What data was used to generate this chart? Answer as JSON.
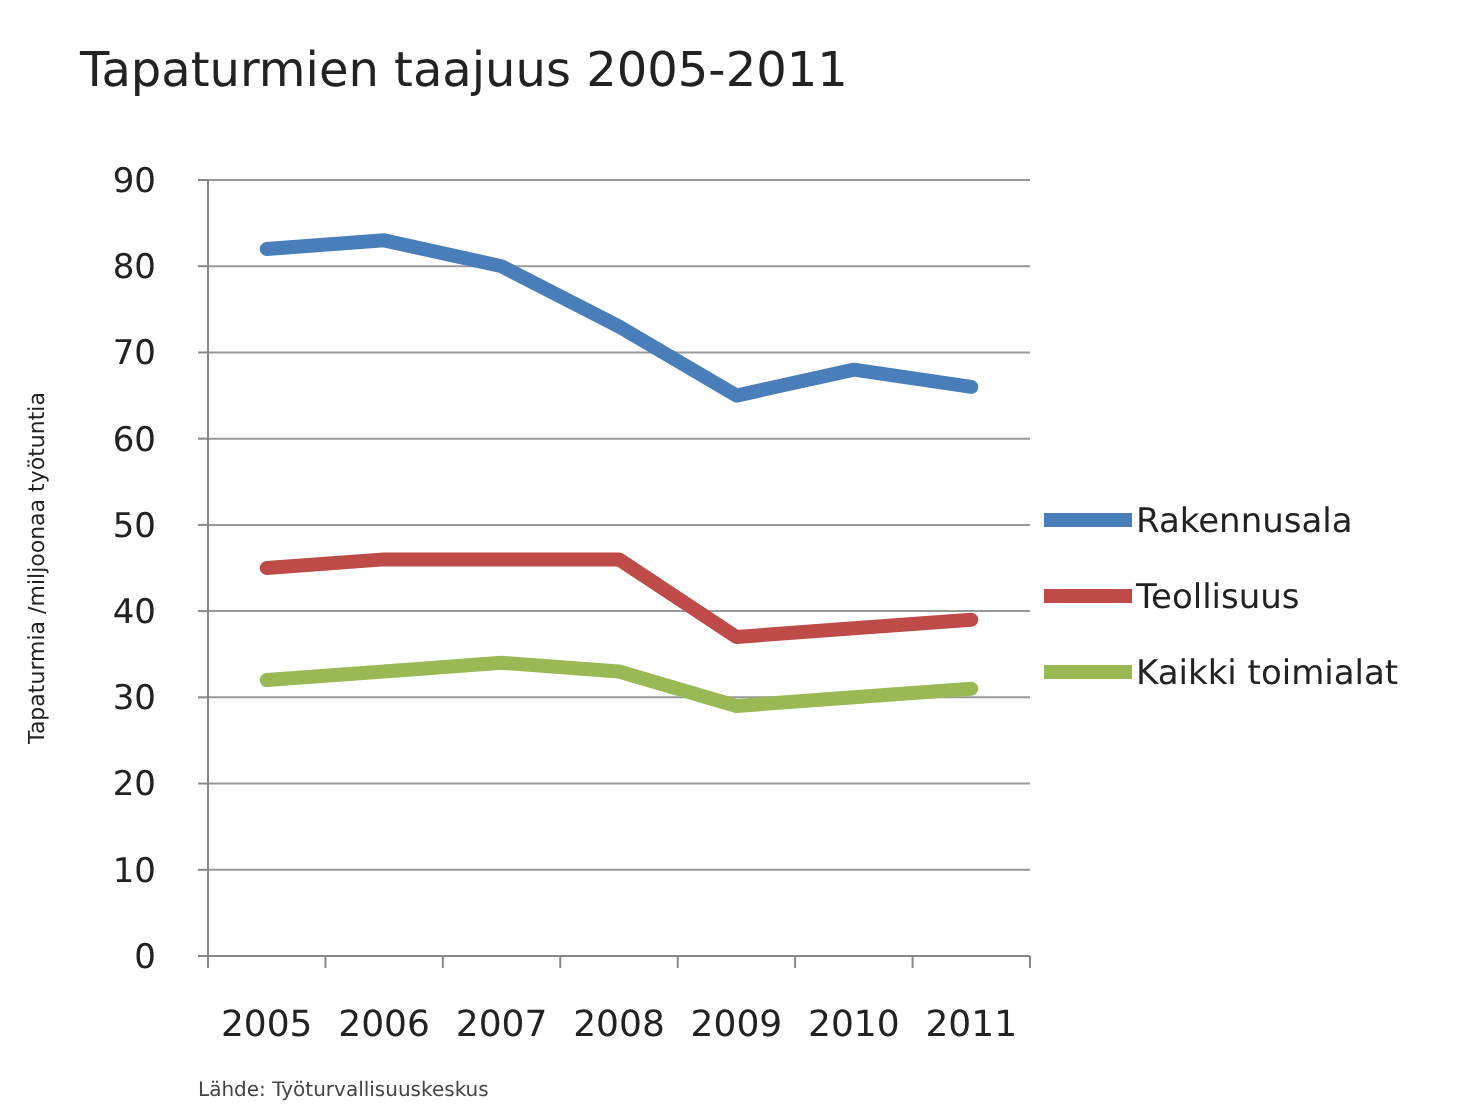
{
  "chart_data": {
    "type": "line",
    "title": "Tapaturmien taajuus 2005-2011",
    "ylabel": "Tapaturmia /miljoonaa työtuntia",
    "categories": [
      "2005",
      "2006",
      "2007",
      "2008",
      "2009",
      "2010",
      "2011"
    ],
    "series": [
      {
        "name": "Rakennusala",
        "color": "#4a7ebb",
        "values": [
          82,
          83,
          80,
          73,
          65,
          68,
          66
        ]
      },
      {
        "name": "Teollisuus",
        "color": "#be4b48",
        "values": [
          45,
          46,
          46,
          46,
          37,
          38,
          39
        ]
      },
      {
        "name": "Kaikki toimialat",
        "color": "#98b954",
        "values": [
          32,
          33,
          34,
          33,
          29,
          30,
          31
        ]
      }
    ],
    "ylim": [
      0,
      90
    ],
    "yticks": [
      0,
      10,
      20,
      30,
      40,
      50,
      60,
      70,
      80,
      90
    ],
    "grid": "y",
    "legend": "right",
    "marker": "none",
    "line_style": "solid",
    "annotations": [
      "Lähde: Työturvallisuuskeskus"
    ]
  }
}
